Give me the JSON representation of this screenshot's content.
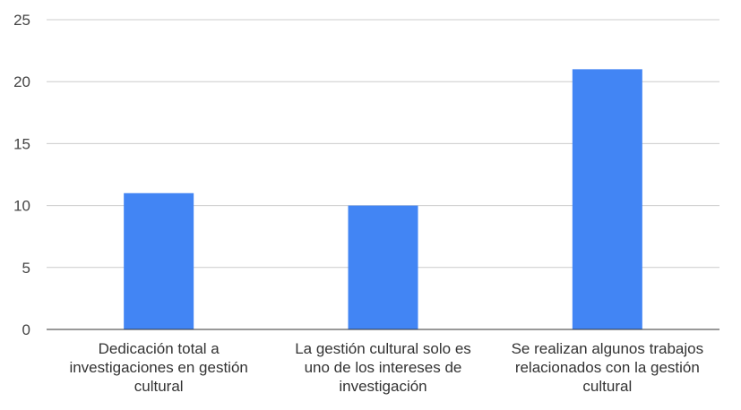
{
  "chart_data": {
    "type": "bar",
    "categories": [
      [
        "Dedicación total a",
        "investigaciones en gestión",
        "cultural"
      ],
      [
        "La gestión cultural solo es",
        "uno de los intereses de",
        "investigación"
      ],
      [
        "Se realizan algunos trabajos",
        "relacionados con la gestión",
        "cultural"
      ]
    ],
    "values": [
      11,
      10,
      21
    ],
    "ylim": [
      0,
      25
    ],
    "yticks": [
      "0",
      "5",
      "10",
      "15",
      "20",
      "25"
    ],
    "ytick_values": [
      0,
      5,
      10,
      15,
      20,
      25
    ],
    "title": "",
    "xlabel": "",
    "ylabel": "",
    "bar_color": "#4285f4",
    "grid": true,
    "legend": "none"
  }
}
